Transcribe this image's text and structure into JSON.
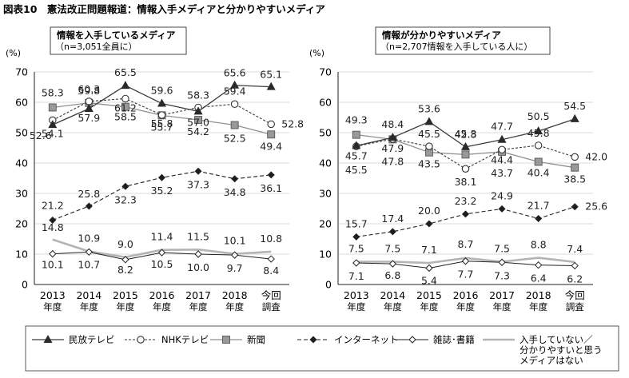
{
  "figure": {
    "title": "図表10　憲法改正問題報道：情報入手メディアと分かりやすいメディア"
  },
  "colors": {
    "minpo": "#3a3a3a",
    "nhk": "#3a3a3a",
    "shinbun": "#8f8f8f",
    "internet": "#222222",
    "zasshi": "#222222",
    "none": "#b4b4b4",
    "grid": "#cfcfcf",
    "text": "#111111"
  },
  "legend": {
    "placement": "bottom",
    "items": [
      {
        "key": "minpo",
        "label": "民放テレビ"
      },
      {
        "key": "nhk",
        "label": "NHKテレビ"
      },
      {
        "key": "shinbun",
        "label": "新聞"
      },
      {
        "key": "internet",
        "label": "インターネット"
      },
      {
        "key": "zasshi",
        "label": "雑誌･書籍"
      },
      {
        "key": "none",
        "label": "入手していない／分かりやすいと思うメディアはない"
      }
    ]
  },
  "chart_data": [
    {
      "type": "line",
      "title": "情報を入手しているメディア",
      "subtitle": "（n=3,051全員に）",
      "ylabel": "(%)",
      "ylim": [
        0,
        70
      ],
      "yticks": [
        0,
        10,
        20,
        30,
        40,
        50,
        60,
        70
      ],
      "grid": true,
      "categories": [
        [
          "2013",
          "年度"
        ],
        [
          "2014",
          "年度"
        ],
        [
          "2015",
          "年度"
        ],
        [
          "2016",
          "年度"
        ],
        [
          "2017",
          "年度"
        ],
        [
          "2018",
          "年度"
        ],
        [
          "今回",
          "調査"
        ]
      ],
      "series": [
        {
          "key": "minpo",
          "name": "民放テレビ",
          "values": [
            52.6,
            57.9,
            65.5,
            59.6,
            57.0,
            65.6,
            65.1
          ]
        },
        {
          "key": "nhk",
          "name": "NHKテレビ",
          "values": [
            54.1,
            60.3,
            61.2,
            55.8,
            58.3,
            59.4,
            52.8
          ]
        },
        {
          "key": "shinbun",
          "name": "新聞",
          "values": [
            58.3,
            59.8,
            58.5,
            55.7,
            54.2,
            52.5,
            49.4
          ]
        },
        {
          "key": "internet",
          "name": "インターネット",
          "values": [
            21.2,
            25.8,
            32.3,
            35.2,
            37.3,
            34.8,
            36.1
          ]
        },
        {
          "key": "zasshi",
          "name": "雑誌･書籍",
          "values": [
            10.1,
            10.7,
            8.2,
            10.5,
            10.0,
            9.7,
            8.4
          ]
        },
        {
          "key": "none",
          "name": "入手していない／分かりやすいと思うメディアはない",
          "values": [
            14.8,
            10.9,
            9.0,
            11.4,
            11.5,
            10.1,
            10.8
          ]
        }
      ]
    },
    {
      "type": "line",
      "title": "情報が分かりやすいメディア",
      "subtitle": "（n=2,707情報を入手している人に）",
      "ylabel": "(%)",
      "ylim": [
        0,
        70
      ],
      "yticks": [
        0,
        10,
        20,
        30,
        40,
        50,
        60,
        70
      ],
      "grid": true,
      "categories": [
        [
          "2013",
          "年度"
        ],
        [
          "2014",
          "年度"
        ],
        [
          "2015",
          "年度"
        ],
        [
          "2016",
          "年度"
        ],
        [
          "2017",
          "年度"
        ],
        [
          "2018",
          "年度"
        ],
        [
          "今回",
          "調査"
        ]
      ],
      "series": [
        {
          "key": "minpo",
          "name": "民放テレビ",
          "values": [
            45.7,
            48.4,
            53.6,
            45.3,
            47.7,
            50.5,
            54.5
          ]
        },
        {
          "key": "nhk",
          "name": "NHKテレビ",
          "values": [
            45.5,
            47.9,
            45.5,
            38.1,
            44.4,
            45.8,
            42.0
          ]
        },
        {
          "key": "shinbun",
          "name": "新聞",
          "values": [
            49.3,
            47.8,
            43.5,
            42.8,
            43.7,
            40.4,
            38.5
          ]
        },
        {
          "key": "internet",
          "name": "インターネット",
          "values": [
            15.7,
            17.4,
            20.0,
            23.2,
            24.9,
            21.7,
            25.6
          ]
        },
        {
          "key": "zasshi",
          "name": "雑誌･書籍",
          "values": [
            7.1,
            6.8,
            5.4,
            7.7,
            7.3,
            6.4,
            6.2
          ]
        },
        {
          "key": "none",
          "name": "入手していない／分かりやすいと思うメディアはない",
          "values": [
            7.5,
            7.5,
            7.1,
            8.7,
            7.5,
            8.8,
            7.4
          ]
        }
      ]
    }
  ]
}
